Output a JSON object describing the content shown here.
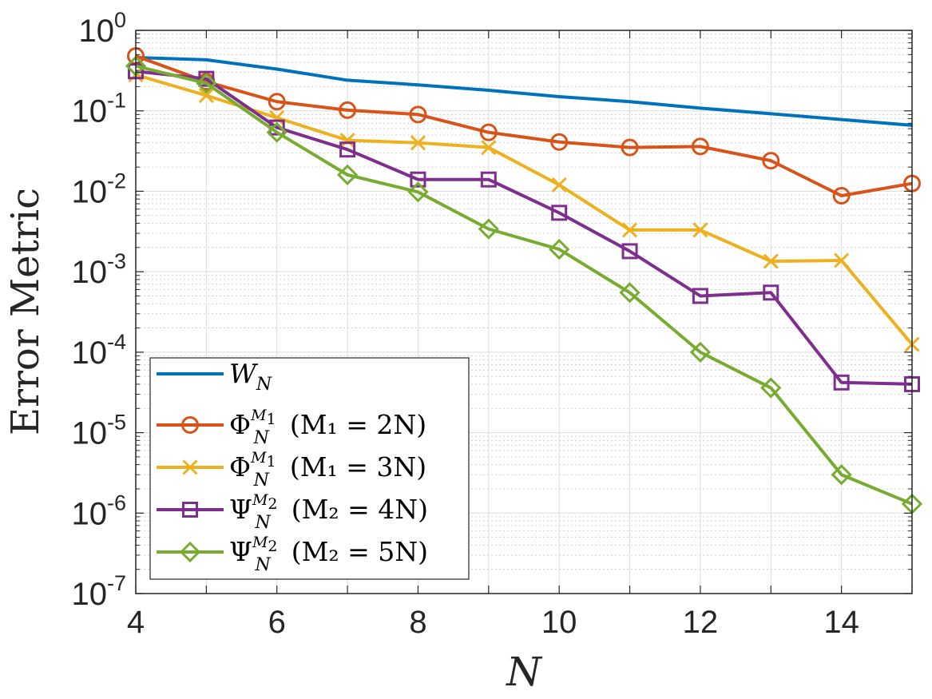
{
  "chart_data": {
    "type": "line",
    "xlabel": "N",
    "ylabel": "Error Metric",
    "xlim": [
      4,
      15
    ],
    "ylim": [
      1e-07,
      1
    ],
    "yscale": "log",
    "grid": true,
    "minor_grid": true,
    "legend_position": "bottom-left",
    "x_ticks": [
      {
        "value": 4,
        "label": "4"
      },
      {
        "value": 6,
        "label": "6"
      },
      {
        "value": 8,
        "label": "8"
      },
      {
        "value": 10,
        "label": "10"
      },
      {
        "value": 12,
        "label": "12"
      },
      {
        "value": 14,
        "label": "14"
      }
    ],
    "y_ticks": [
      {
        "value": 1,
        "base": "10",
        "exp": "0"
      },
      {
        "value": 0.1,
        "base": "10",
        "exp": "-1"
      },
      {
        "value": 0.01,
        "base": "10",
        "exp": "-2"
      },
      {
        "value": 0.001,
        "base": "10",
        "exp": "-3"
      },
      {
        "value": 0.0001,
        "base": "10",
        "exp": "-4"
      },
      {
        "value": 1e-05,
        "base": "10",
        "exp": "-5"
      },
      {
        "value": 1e-06,
        "base": "10",
        "exp": "-6"
      },
      {
        "value": 1e-07,
        "base": "10",
        "exp": "-7"
      }
    ],
    "x": [
      4,
      5,
      6,
      7,
      8,
      9,
      10,
      11,
      12,
      13,
      14,
      15
    ],
    "series": [
      {
        "id": "W",
        "color": "#0072BD",
        "marker": "none",
        "legend": {
          "base": "W",
          "sub": "N",
          "sup": "",
          "cond": ""
        },
        "values": [
          0.46,
          0.43,
          0.33,
          0.24,
          0.21,
          0.18,
          0.15,
          0.13,
          0.108,
          0.092,
          0.078,
          0.066
        ]
      },
      {
        "id": "phi-2N",
        "color": "#D95319",
        "marker": "circle",
        "legend": {
          "base": "Φ",
          "sub": "N",
          "sup": "M",
          "supsub": "1",
          "cond": "(M₁ = 2N)"
        },
        "values": [
          0.48,
          0.23,
          0.13,
          0.102,
          0.09,
          0.054,
          0.041,
          0.035,
          0.036,
          0.024,
          0.0088,
          0.0125
        ]
      },
      {
        "id": "phi-3N",
        "color": "#EDB120",
        "marker": "x",
        "legend": {
          "base": "Φ",
          "sub": "N",
          "sup": "M",
          "supsub": "1",
          "cond": "(M₁ = 3N)"
        },
        "values": [
          0.28,
          0.155,
          0.082,
          0.043,
          0.04,
          0.035,
          0.012,
          0.0033,
          0.0033,
          0.00135,
          0.00138,
          0.000125
        ]
      },
      {
        "id": "psi-4N",
        "color": "#7E2F8E",
        "marker": "square",
        "legend": {
          "base": "Ψ",
          "sub": "N",
          "sup": "M",
          "supsub": "2",
          "cond": "(M₂ = 4N)"
        },
        "values": [
          0.31,
          0.25,
          0.062,
          0.033,
          0.014,
          0.014,
          0.0054,
          0.0018,
          0.0005,
          0.00055,
          4.2e-05,
          4e-05
        ]
      },
      {
        "id": "psi-5N",
        "color": "#77AC30",
        "marker": "diamond",
        "legend": {
          "base": "Ψ",
          "sub": "N",
          "sup": "M",
          "supsub": "2",
          "cond": "(M₂ = 5N)"
        },
        "values": [
          0.36,
          0.22,
          0.054,
          0.016,
          0.0098,
          0.0034,
          0.0019,
          0.00055,
          0.0001,
          3.6e-05,
          3e-06,
          1.3e-06
        ]
      }
    ]
  }
}
